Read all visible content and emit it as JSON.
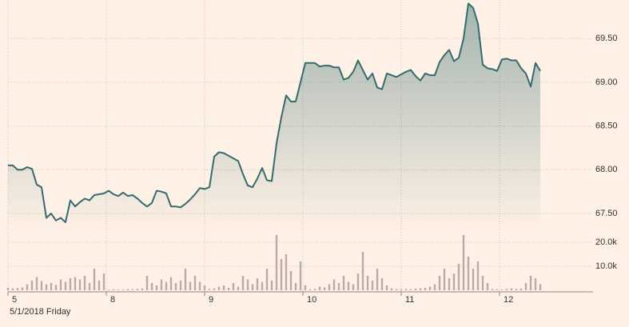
{
  "chart_data": [
    {
      "type": "area",
      "annotation": "5/1/2018 Friday",
      "x": [
        0,
        1,
        2,
        3,
        4,
        5,
        6,
        7,
        8,
        9,
        10,
        11,
        12,
        13,
        14,
        15,
        16,
        17,
        18,
        19,
        20,
        21,
        22,
        23,
        24,
        25,
        26,
        27,
        28,
        29,
        30,
        31,
        32,
        33,
        34,
        35,
        36,
        37,
        38,
        39,
        40,
        41,
        42,
        43,
        44,
        45,
        46,
        47,
        48,
        49,
        50,
        51,
        52,
        53,
        54,
        55,
        56,
        57,
        58,
        59,
        60,
        61,
        62,
        63,
        64,
        65,
        66,
        67,
        68,
        69,
        70,
        71,
        72,
        73,
        74,
        75,
        76,
        77,
        78,
        79,
        80,
        81,
        82,
        83,
        84,
        85,
        86,
        87,
        88,
        89,
        90,
        91,
        92,
        93,
        94,
        95,
        96,
        97,
        98,
        99,
        100,
        101,
        102,
        103,
        104,
        105,
        106,
        107,
        108,
        109,
        110,
        111
      ],
      "xlim": [
        0,
        122
      ],
      "xticks": [
        {
          "value": 0,
          "label": "5"
        },
        {
          "value": 20.5,
          "label": "8"
        },
        {
          "value": 41,
          "label": "9"
        },
        {
          "value": 61.5,
          "label": "10"
        },
        {
          "value": 82,
          "label": "11"
        },
        {
          "value": 102.5,
          "label": "12"
        }
      ],
      "ylim": [
        67.29,
        69.94
      ],
      "yticks": [
        {
          "value": 67.5,
          "label": "67.50"
        },
        {
          "value": 68,
          "label": "68.00"
        },
        {
          "value": 68.5,
          "label": "68.50"
        },
        {
          "value": 69,
          "label": "69.00"
        },
        {
          "value": 69.5,
          "label": "69.50"
        }
      ],
      "grid": true,
      "series": [
        {
          "color": "#336c6e",
          "values": [
            68.05,
            68.05,
            68.0,
            68.0,
            68.03,
            68.01,
            67.83,
            67.8,
            67.45,
            67.5,
            67.42,
            67.45,
            67.4,
            67.65,
            67.58,
            67.63,
            67.67,
            67.65,
            67.71,
            67.72,
            67.73,
            67.76,
            67.72,
            67.7,
            67.74,
            67.7,
            67.71,
            67.67,
            67.62,
            67.58,
            67.62,
            67.76,
            67.75,
            67.73,
            67.58,
            67.58,
            67.57,
            67.61,
            67.66,
            67.72,
            67.79,
            67.78,
            67.8,
            68.15,
            68.2,
            68.19,
            68.16,
            68.13,
            68.1,
            67.95,
            67.82,
            67.8,
            67.9,
            68.02,
            67.88,
            67.87,
            68.3,
            68.6,
            68.85,
            68.78,
            68.78,
            69.0,
            69.22,
            69.22,
            69.22,
            69.18,
            69.19,
            69.19,
            69.17,
            69.17,
            69.03,
            69.05,
            69.12,
            69.25,
            69.14,
            69.03,
            69.1,
            68.94,
            68.92,
            69.1,
            69.08,
            69.06,
            69.09,
            69.12,
            69.14,
            69.07,
            69.02,
            69.1,
            69.08,
            69.08,
            69.23,
            69.31,
            69.37,
            69.24,
            69.28,
            69.5,
            69.9,
            69.85,
            69.67,
            69.2,
            69.16,
            69.15,
            69.13,
            69.26,
            69.27,
            69.25,
            69.25,
            69.16,
            69.1,
            68.95,
            69.22,
            69.13
          ]
        }
      ]
    },
    {
      "type": "bar",
      "x": [
        0,
        1,
        2,
        3,
        4,
        5,
        6,
        7,
        8,
        9,
        10,
        11,
        12,
        13,
        14,
        15,
        16,
        17,
        18,
        19,
        20,
        21,
        22,
        23,
        24,
        25,
        26,
        27,
        28,
        29,
        30,
        31,
        32,
        33,
        34,
        35,
        36,
        37,
        38,
        39,
        40,
        41,
        42,
        43,
        44,
        45,
        46,
        47,
        48,
        49,
        50,
        51,
        52,
        53,
        54,
        55,
        56,
        57,
        58,
        59,
        60,
        61,
        62,
        63,
        64,
        65,
        66,
        67,
        68,
        69,
        70,
        71,
        72,
        73,
        74,
        75,
        76,
        77,
        78,
        79,
        80,
        81,
        82,
        83,
        84,
        85,
        86,
        87,
        88,
        89,
        90,
        91,
        92,
        93,
        94,
        95,
        96,
        97,
        98,
        99,
        100,
        101,
        102,
        103,
        104,
        105,
        106,
        107,
        108,
        109,
        110,
        111
      ],
      "xlim": [
        0,
        122
      ],
      "ylim": [
        0,
        24000
      ],
      "yticks": [
        {
          "value": 10000,
          "label": "10.0k"
        },
        {
          "value": 20000,
          "label": "20.0k"
        }
      ],
      "grid": true,
      "color": "#b8aca4",
      "values": [
        1000,
        800,
        900,
        1200,
        2500,
        4000,
        5500,
        3800,
        2500,
        3000,
        2200,
        4500,
        3500,
        5000,
        5500,
        4500,
        6000,
        3000,
        9000,
        4000,
        7000,
        300,
        400,
        300,
        300,
        500,
        400,
        600,
        800,
        6000,
        3000,
        2000,
        4500,
        3500,
        5500,
        3000,
        4000,
        9000,
        3500,
        6000,
        3500,
        2000,
        500,
        800,
        1500,
        2000,
        1000,
        3000,
        1500,
        6000,
        4500,
        2500,
        5000,
        3500,
        9000,
        4000,
        23000,
        13000,
        15000,
        8000,
        3000,
        12000,
        2000,
        400,
        600,
        1500,
        1200,
        2500,
        4500,
        3000,
        6000,
        3500,
        2500,
        7000,
        16000,
        6000,
        4000,
        9000,
        5000,
        2000,
        800,
        500,
        400,
        600,
        500,
        700,
        800,
        1000,
        1500,
        2500,
        6000,
        9000,
        5000,
        7000,
        11000,
        23000,
        14000,
        9000,
        12000,
        6000,
        3000,
        500,
        400,
        300,
        500,
        800,
        600,
        700,
        3000,
        6000,
        5000,
        2500
      ]
    }
  ]
}
